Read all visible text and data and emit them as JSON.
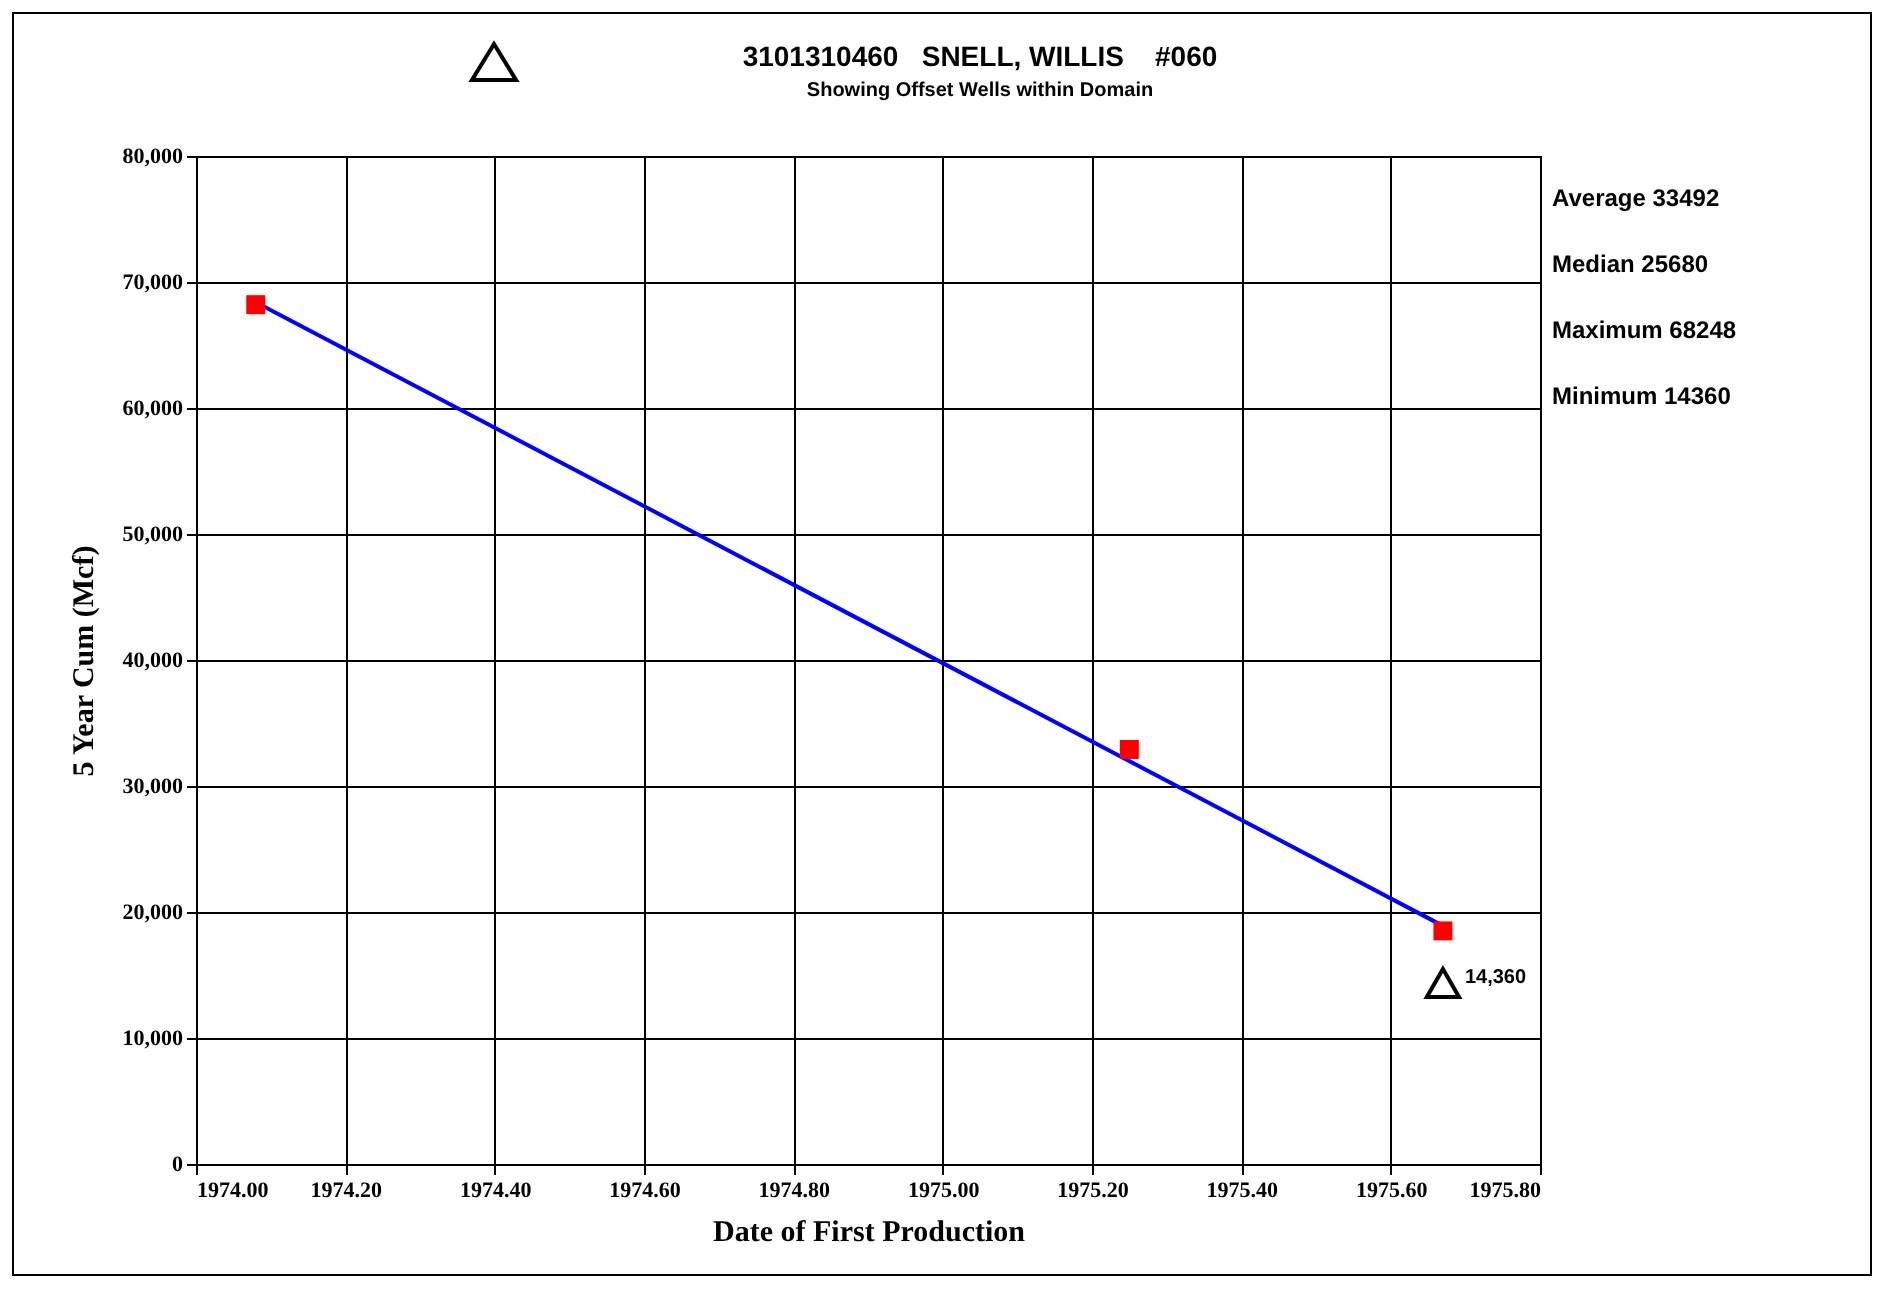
{
  "chart_data": {
    "type": "scatter",
    "title": "3101310460   SNELL, WILLIS    #060",
    "subtitle": "Showing Offset Wells within Domain",
    "xlabel": "Date of First Production",
    "ylabel": "5 Year Cum (Mcf)",
    "xlim": [
      1974.0,
      1975.8
    ],
    "xticks": [
      {
        "value": 1974.0,
        "label": "1974.00"
      },
      {
        "value": 1974.2,
        "label": "1974.20"
      },
      {
        "value": 1974.4,
        "label": "1974.40"
      },
      {
        "value": 1974.6,
        "label": "1974.60"
      },
      {
        "value": 1974.8,
        "label": "1974.80"
      },
      {
        "value": 1975.0,
        "label": "1975.00"
      },
      {
        "value": 1975.2,
        "label": "1975.20"
      },
      {
        "value": 1975.4,
        "label": "1975.40"
      },
      {
        "value": 1975.6,
        "label": "1975.60"
      },
      {
        "value": 1975.8,
        "label": "1975.80"
      }
    ],
    "ylim": [
      0,
      80000
    ],
    "yticks": [
      0,
      {
        "value": 10000,
        "label": "10,000"
      },
      {
        "value": 20000,
        "label": "20,000"
      },
      {
        "value": 30000,
        "label": "30,000"
      },
      {
        "value": 40000,
        "label": "40,000"
      },
      {
        "value": 50000,
        "label": "50,000"
      },
      {
        "value": 60000,
        "label": "60,000"
      },
      {
        "value": 70000,
        "label": "70,000"
      },
      {
        "value": 80000,
        "label": "80,000"
      }
    ],
    "grid": true,
    "annotations": [
      "Average 33492",
      "Median 25680",
      "Maximum 68248",
      "Minimum 14360"
    ],
    "series": [
      {
        "type": "line",
        "color": "#0000ff",
        "x": [
          1974.08,
          1975.67
        ],
        "values": [
          68400,
          18900
        ],
        "marker": "none",
        "line_style": "solid"
      },
      {
        "color": "#ff0000",
        "x": [
          1974.08,
          1975.25,
          1975.67
        ],
        "values": [
          68200,
          32900,
          18500
        ],
        "marker": "square"
      },
      {
        "color": "#000000",
        "x": [
          1975.67
        ],
        "values": [
          14360
        ],
        "marker": "triangle",
        "value_labels": [
          "14,360"
        ]
      }
    ]
  }
}
